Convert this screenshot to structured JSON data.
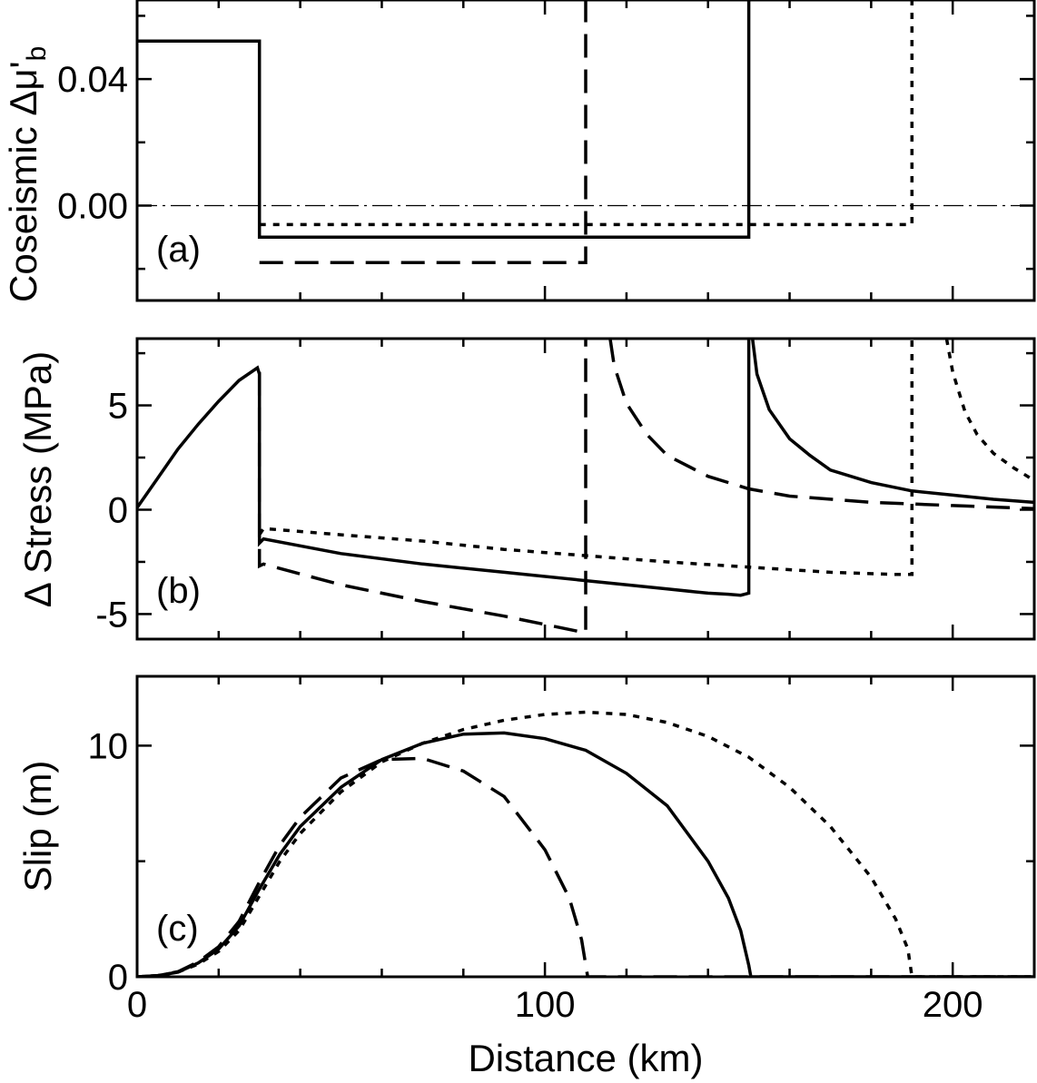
{
  "chart_data": [
    {
      "panel": "a",
      "type": "line",
      "panel_tag": "(a)",
      "ylabel": "Coseismic Δμ'",
      "ylabel_sub": "b",
      "xlim": [
        0,
        220
      ],
      "ylim": [
        -0.03,
        0.065
      ],
      "yticks": [
        0.04,
        0.0
      ],
      "ytick_labels": [
        "0.04",
        "0.00"
      ],
      "reference_line_y": 0.0,
      "series": [
        {
          "style": "solid",
          "x": [
            0,
            30,
            30,
            150,
            150
          ],
          "y": [
            0.052,
            0.052,
            -0.01,
            -0.01,
            0.065
          ]
        },
        {
          "style": "dashed",
          "x": [
            30,
            110,
            110
          ],
          "y": [
            -0.018,
            -0.018,
            0.065
          ]
        },
        {
          "style": "dotted",
          "x": [
            30,
            190,
            190
          ],
          "y": [
            -0.006,
            -0.006,
            0.065
          ]
        }
      ]
    },
    {
      "panel": "b",
      "type": "line",
      "panel_tag": "(b)",
      "ylabel": "Δ Stress (MPa)",
      "xlim": [
        0,
        220
      ],
      "ylim": [
        -6.2,
        8.2
      ],
      "yticks": [
        5,
        0,
        -5
      ],
      "ytick_labels": [
        "5",
        "0",
        "-5"
      ],
      "series": [
        {
          "style": "solid",
          "x": [
            0,
            5,
            10,
            15,
            20,
            25,
            29.5,
            30,
            30,
            31,
            50,
            70,
            90,
            110,
            130,
            140,
            145,
            148,
            150,
            150
          ],
          "y": [
            0.1,
            1.5,
            2.9,
            4.1,
            5.2,
            6.2,
            6.8,
            6.5,
            -1.6,
            -1.4,
            -2.1,
            -2.6,
            -3.0,
            -3.4,
            -3.8,
            -4.0,
            -4.05,
            -4.1,
            -4.0,
            8.2
          ]
        },
        {
          "style": "solid",
          "x": [
            150.9,
            152,
            155,
            160,
            165,
            170,
            180,
            190,
            200,
            210,
            220
          ],
          "y": [
            8.2,
            6.5,
            4.8,
            3.4,
            2.6,
            1.9,
            1.3,
            0.9,
            0.7,
            0.5,
            0.35
          ]
        },
        {
          "style": "dashed",
          "x": [
            30,
            30,
            31,
            50,
            70,
            90,
            110,
            110
          ],
          "y": [
            6.6,
            -2.7,
            -2.6,
            -3.6,
            -4.4,
            -5.1,
            -5.9,
            8.2
          ]
        },
        {
          "style": "dashed",
          "x": [
            116,
            117,
            120,
            125,
            130,
            140,
            150,
            160,
            180,
            200,
            220
          ],
          "y": [
            8.2,
            6.9,
            5.1,
            3.6,
            2.6,
            1.6,
            1.0,
            0.65,
            0.35,
            0.2,
            0.05
          ]
        },
        {
          "style": "dotted",
          "x": [
            30,
            31,
            50,
            70,
            90,
            110,
            130,
            150,
            170,
            185,
            190,
            190
          ],
          "y": [
            -1.2,
            -0.9,
            -1.2,
            -1.5,
            -1.9,
            -2.2,
            -2.5,
            -2.75,
            -3.0,
            -3.1,
            -3.1,
            8.2
          ]
        },
        {
          "style": "dotted",
          "x": [
            198.5,
            200,
            203,
            206,
            210,
            215,
            220
          ],
          "y": [
            8.2,
            6.6,
            4.7,
            3.6,
            2.7,
            2.0,
            1.4
          ]
        }
      ]
    },
    {
      "panel": "c",
      "type": "line",
      "panel_tag": "(c)",
      "ylabel": "Slip (m)",
      "xlabel": "Distance (km)",
      "xlim": [
        0,
        220
      ],
      "ylim": [
        0,
        13
      ],
      "yticks": [
        10,
        0
      ],
      "ytick_labels": [
        "10",
        "0"
      ],
      "xticks": [
        0,
        100,
        200
      ],
      "xtick_labels": [
        "0",
        "100",
        "200"
      ],
      "series": [
        {
          "style": "solid",
          "x": [
            0,
            5,
            10,
            15,
            20,
            25,
            30,
            35,
            40,
            50,
            60,
            70,
            80,
            90,
            100,
            110,
            120,
            130,
            140,
            145,
            148,
            150,
            150.5,
            220
          ],
          "y": [
            0,
            0.05,
            0.2,
            0.6,
            1.2,
            2.2,
            3.8,
            5.3,
            6.5,
            8.2,
            9.4,
            10.1,
            10.5,
            10.55,
            10.3,
            9.8,
            8.8,
            7.4,
            5.0,
            3.4,
            2.0,
            0.5,
            0,
            0
          ]
        },
        {
          "style": "dashed",
          "x": [
            0,
            5,
            10,
            15,
            20,
            25,
            30,
            35,
            40,
            50,
            60,
            70,
            80,
            90,
            100,
            106,
            109,
            110.5,
            220
          ],
          "y": [
            0,
            0.05,
            0.22,
            0.65,
            1.3,
            2.4,
            4.1,
            5.7,
            6.9,
            8.6,
            9.4,
            9.45,
            8.9,
            7.8,
            5.5,
            3.4,
            1.6,
            0,
            0
          ]
        },
        {
          "style": "dotted",
          "x": [
            0,
            5,
            10,
            15,
            20,
            25,
            30,
            35,
            40,
            50,
            60,
            70,
            80,
            90,
            100,
            110,
            120,
            130,
            140,
            150,
            160,
            170,
            180,
            186,
            189,
            190,
            220
          ],
          "y": [
            0,
            0.05,
            0.2,
            0.55,
            1.1,
            2.0,
            3.5,
            5.0,
            6.2,
            8.0,
            9.3,
            10.1,
            10.7,
            11.1,
            11.35,
            11.45,
            11.35,
            11.0,
            10.4,
            9.5,
            8.2,
            6.5,
            4.3,
            2.5,
            1.2,
            0,
            0
          ]
        }
      ]
    }
  ]
}
